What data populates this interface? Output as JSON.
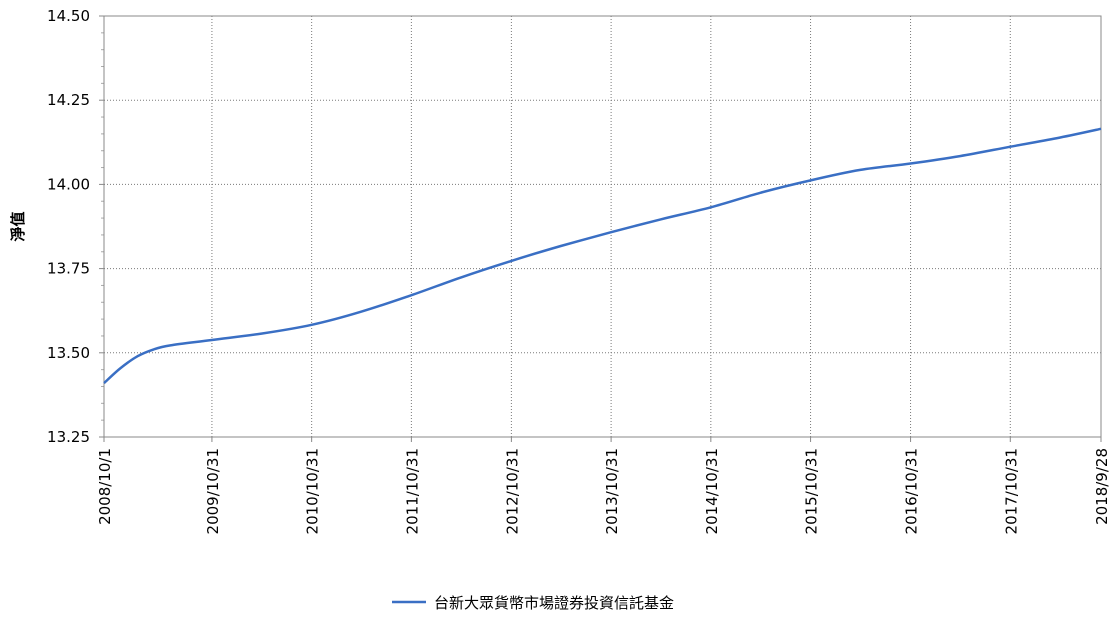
{
  "chart_data": {
    "type": "line",
    "title": "",
    "xlabel": "",
    "ylabel": "淨值",
    "ylim": [
      13.25,
      14.5
    ],
    "yticks": [
      "13.25",
      "13.50",
      "13.75",
      "14.00",
      "14.25",
      "14.50"
    ],
    "xlim": [
      "2008/10/1",
      "2018/9/28"
    ],
    "xticks": [
      "2008/10/1",
      "2009/10/31",
      "2010/10/31",
      "2011/10/31",
      "2012/10/31",
      "2013/10/31",
      "2014/10/31",
      "2015/10/31",
      "2016/10/31",
      "2017/10/31",
      "2018/9/28"
    ],
    "grid": true,
    "legend_position": "bottom",
    "series": [
      {
        "name": "台新大眾貨幣市場證券投資信託基金",
        "color": "#3a6fc4",
        "points": [
          {
            "x": "2008/10/1",
            "y": 13.41
          },
          {
            "x": "2008/12/1",
            "y": 13.455
          },
          {
            "x": "2009/2/1",
            "y": 13.49
          },
          {
            "x": "2009/4/1",
            "y": 13.51
          },
          {
            "x": "2009/6/1",
            "y": 13.522
          },
          {
            "x": "2009/10/31",
            "y": 13.538
          },
          {
            "x": "2010/4/30",
            "y": 13.557
          },
          {
            "x": "2010/10/31",
            "y": 13.583
          },
          {
            "x": "2011/4/30",
            "y": 13.622
          },
          {
            "x": "2011/10/31",
            "y": 13.671
          },
          {
            "x": "2012/4/30",
            "y": 13.724
          },
          {
            "x": "2012/10/31",
            "y": 13.773
          },
          {
            "x": "2013/4/30",
            "y": 13.817
          },
          {
            "x": "2013/10/31",
            "y": 13.858
          },
          {
            "x": "2014/4/30",
            "y": 13.896
          },
          {
            "x": "2014/10/31",
            "y": 13.932
          },
          {
            "x": "2015/4/30",
            "y": 13.975
          },
          {
            "x": "2015/10/31",
            "y": 14.012
          },
          {
            "x": "2016/4/30",
            "y": 14.043
          },
          {
            "x": "2016/10/31",
            "y": 14.062
          },
          {
            "x": "2017/4/30",
            "y": 14.084
          },
          {
            "x": "2017/10/31",
            "y": 14.112
          },
          {
            "x": "2018/4/30",
            "y": 14.139
          },
          {
            "x": "2018/9/28",
            "y": 14.165
          }
        ]
      }
    ]
  }
}
